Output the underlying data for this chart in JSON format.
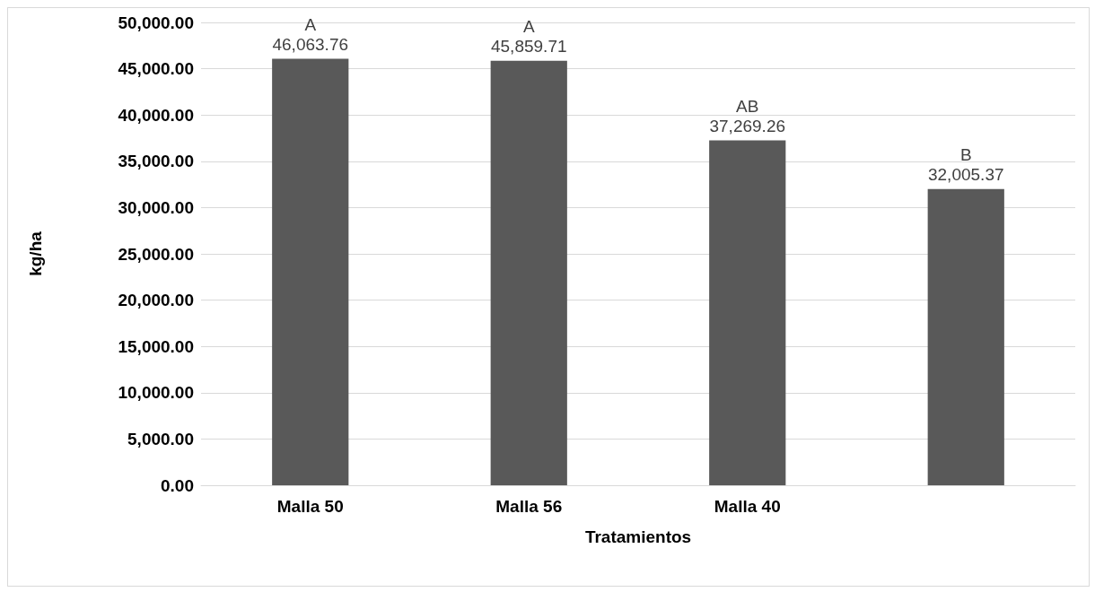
{
  "chart_data": {
    "type": "bar",
    "xlabel": "Tratamientos",
    "ylabel": "kg/ha",
    "categories": [
      "Malla 50",
      "Malla 56",
      "Malla 40",
      null
    ],
    "values": [
      46063.76,
      45859.71,
      37269.26,
      32005.37
    ],
    "value_labels": [
      "A\n46,063.76",
      "A\n45,859.71",
      "AB\n37,269.26",
      "B\n32,005.37"
    ],
    "color": "#595959",
    "ylim": [
      0,
      50000
    ],
    "yticks": [
      {
        "value": 0,
        "label": "0.00"
      },
      {
        "value": 5000,
        "label": "5,000.00"
      },
      {
        "value": 10000,
        "label": "10,000.00"
      },
      {
        "value": 15000,
        "label": "15,000.00"
      },
      {
        "value": 20000,
        "label": "20,000.00"
      },
      {
        "value": 25000,
        "label": "25,000.00"
      },
      {
        "value": 30000,
        "label": "30,000.00"
      },
      {
        "value": 35000,
        "label": "35,000.00"
      },
      {
        "value": 40000,
        "label": "40,000.00"
      },
      {
        "value": 45000,
        "label": "45,000.00"
      },
      {
        "value": 50000,
        "label": "50,000.00"
      }
    ],
    "grid": "y"
  }
}
